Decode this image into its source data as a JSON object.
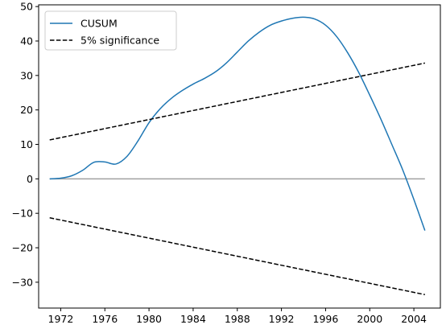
{
  "chart_data": {
    "type": "line",
    "title": "",
    "xlabel": "",
    "ylabel": "",
    "xlim": [
      1970.0,
      2006.4
    ],
    "ylim": [
      -37.5,
      50.5
    ],
    "x_ticks": [
      1972,
      1976,
      1980,
      1984,
      1988,
      1992,
      1996,
      2000,
      2004
    ],
    "y_ticks": [
      -30,
      -20,
      -10,
      0,
      10,
      20,
      30,
      40,
      50
    ],
    "grid": false,
    "legend_position": "top-left",
    "series": [
      {
        "name": "CUSUM",
        "color": "#1f77b4",
        "style": "solid",
        "x": [
          1971,
          1972,
          1973,
          1974,
          1975,
          1976,
          1977,
          1978,
          1979,
          1980,
          1981,
          1982,
          1983,
          1984,
          1985,
          1986,
          1987,
          1988,
          1989,
          1990,
          1991,
          1992,
          1993,
          1994,
          1995,
          1996,
          1997,
          1998,
          1999,
          2000,
          2001,
          2002,
          2003,
          2004,
          2005
        ],
        "y": [
          0,
          0.2,
          0.9,
          2.5,
          4.8,
          4.9,
          4.3,
          6.5,
          11.0,
          16.3,
          20.3,
          23.3,
          25.6,
          27.5,
          29.1,
          31.0,
          33.6,
          36.8,
          40.0,
          42.6,
          44.6,
          45.8,
          46.6,
          46.9,
          46.4,
          44.6,
          41.3,
          36.6,
          30.9,
          24.3,
          17.4,
          10.0,
          2.5,
          -6.0,
          -15.0
        ]
      },
      {
        "name": "5% significance",
        "color": "#000000",
        "style": "dashed",
        "x": [
          1971,
          2005
        ],
        "y": [
          11.3,
          33.6
        ]
      },
      {
        "name": "",
        "color": "#000000",
        "style": "dashed",
        "x": [
          1971,
          2005
        ],
        "y": [
          -11.3,
          -33.6
        ]
      }
    ],
    "reference_line": {
      "y": 0,
      "color": "#a0a0a0"
    }
  }
}
